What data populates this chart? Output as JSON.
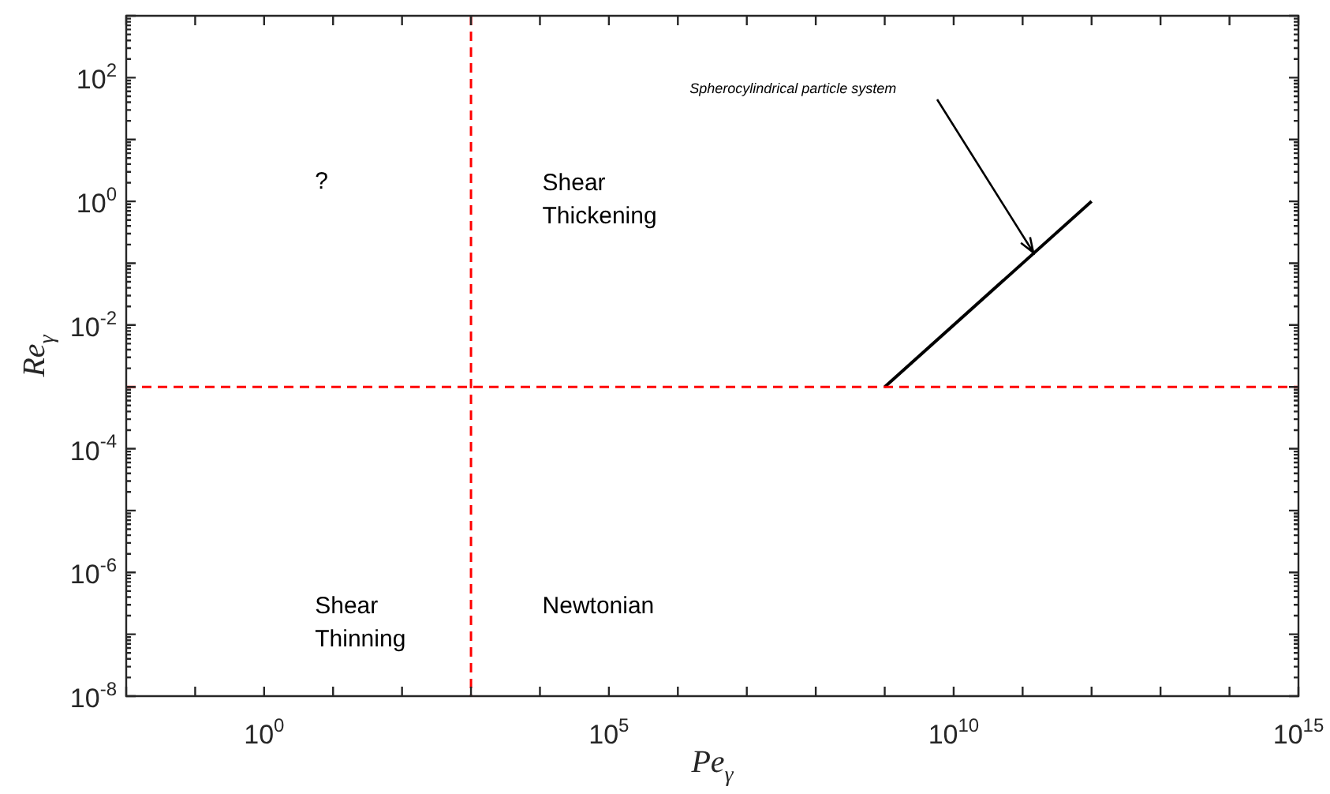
{
  "chart_data": {
    "type": "line",
    "xlabel": "Pe$_{γ}$",
    "ylabel": "Re$_{γ}$",
    "series": [
      {
        "color": "#000000",
        "x": [
          1000000000,
          1000000000000
        ],
        "values": [
          0.001,
          1
        ]
      }
    ],
    "log": "xy",
    "xlim": [
      0.01,
      1000000000000000.0
    ],
    "ylim": [
      1e-08,
      1000
    ],
    "xticks": [
      {
        "value": 0.01,
        "label": null
      },
      {
        "value": 0.1,
        "label": null
      },
      {
        "value": 1,
        "label": "10$^{0}$"
      },
      {
        "value": 10,
        "label": null
      },
      {
        "value": 100,
        "label": null
      },
      {
        "value": 1000,
        "label": null
      },
      {
        "value": 10000,
        "label": null
      },
      {
        "value": 100000,
        "label": "10$^{5}$"
      },
      {
        "value": 1000000,
        "label": null
      },
      {
        "value": 10000000,
        "label": null
      },
      {
        "value": 100000000,
        "label": null
      },
      {
        "value": 1000000000,
        "label": null
      },
      {
        "value": 10000000000,
        "label": "10$^{10}$"
      },
      {
        "value": 100000000000,
        "label": null
      },
      {
        "value": 1000000000000,
        "label": null
      },
      {
        "value": 10000000000000,
        "label": null
      },
      {
        "value": 100000000000000,
        "label": null
      },
      {
        "value": 1000000000000000.0,
        "label": "10$^{15}$"
      }
    ],
    "yticks": [
      {
        "value": 1e-08,
        "label": "10$^{-8}$"
      },
      {
        "value": 1e-07,
        "label": null
      },
      {
        "value": 1e-06,
        "label": "10$^{-6}$"
      },
      {
        "value": 1e-05,
        "label": null
      },
      {
        "value": 0.0001,
        "label": "10$^{-4}$"
      },
      {
        "value": 0.001,
        "label": null
      },
      {
        "value": 0.01,
        "label": "10$^{-2}$"
      },
      {
        "value": 0.1,
        "label": null
      },
      {
        "value": 1,
        "label": "10$^{0}$"
      },
      {
        "value": 10,
        "label": null
      },
      {
        "value": 100,
        "label": "10$^{2}$"
      },
      {
        "value": 1000,
        "label": null
      }
    ],
    "ref_lines": [
      {
        "axis": "x",
        "value": 1000,
        "color": "#ff0000",
        "line_style": "dashed"
      },
      {
        "axis": "y",
        "value": 0.001,
        "color": "#ff0000",
        "line_style": "dashed"
      }
    ],
    "annotations": [
      "?",
      "Shear\nThickening",
      "Shear\nThinning",
      "Newtonian",
      "Spherocylindrical particle system"
    ],
    "grid": false,
    "legend": false,
    "marker": "none",
    "line_style": "solid"
  }
}
